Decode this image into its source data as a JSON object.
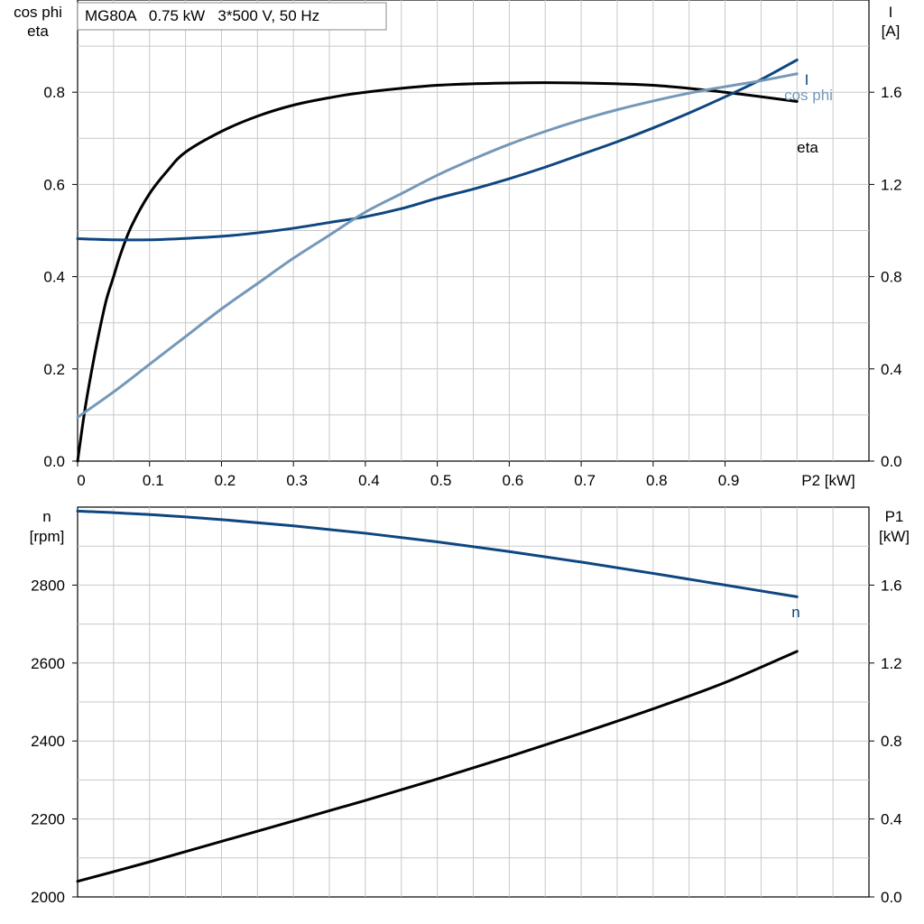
{
  "caption": "MG80A   0.75 kW   3*500 V, 50 Hz",
  "colors": {
    "eta": "#000000",
    "I": "#0e4680",
    "cos_phi": "#7498b8",
    "n": "#0e4680",
    "P1": "#000000",
    "grid": "#c8c8c8"
  },
  "chart_data": [
    {
      "type": "line",
      "x_axis": {
        "label": "P2 [kW]",
        "range": [
          0,
          1.1
        ],
        "ticks": [
          0,
          0.1,
          0.2,
          0.3,
          0.4,
          0.5,
          0.6,
          0.7,
          0.8,
          0.9
        ],
        "tick_labels": [
          "0",
          "0.1",
          "0.2",
          "0.3",
          "0.4",
          "0.5",
          "0.6",
          "0.7",
          "0.8",
          "0.9"
        ]
      },
      "left_axis": {
        "label_line1": "cos phi",
        "label_line2": "eta",
        "range": [
          0,
          1.0
        ],
        "ticks": [
          0,
          0.2,
          0.4,
          0.6,
          0.8
        ],
        "tick_labels": [
          "0.0",
          "0.2",
          "0.4",
          "0.6",
          "0.8"
        ]
      },
      "right_axis": {
        "label_line1": "I",
        "label_line2": "[A]",
        "range": [
          0,
          2.0
        ],
        "ticks": [
          0,
          0.4,
          0.8,
          1.2,
          1.6
        ],
        "tick_labels": [
          "0.0",
          "0.4",
          "0.8",
          "1.2",
          "1.6"
        ]
      },
      "grid": true,
      "series": [
        {
          "name": "eta",
          "axis": "left",
          "x": [
            0,
            0.01,
            0.02,
            0.03,
            0.04,
            0.05,
            0.06,
            0.075,
            0.1,
            0.125,
            0.15,
            0.2,
            0.25,
            0.3,
            0.35,
            0.4,
            0.5,
            0.6,
            0.7,
            0.8,
            0.9,
            1.0
          ],
          "y": [
            0.0,
            0.11,
            0.2,
            0.28,
            0.35,
            0.4,
            0.45,
            0.51,
            0.58,
            0.63,
            0.67,
            0.715,
            0.748,
            0.772,
            0.788,
            0.8,
            0.815,
            0.82,
            0.82,
            0.815,
            0.8,
            0.78
          ]
        },
        {
          "name": "I",
          "axis": "right",
          "x": [
            0,
            0.05,
            0.1,
            0.15,
            0.2,
            0.25,
            0.3,
            0.35,
            0.4,
            0.45,
            0.5,
            0.55,
            0.6,
            0.65,
            0.7,
            0.75,
            0.8,
            0.85,
            0.9,
            0.95,
            1.0
          ],
          "y": [
            0.965,
            0.96,
            0.96,
            0.966,
            0.975,
            0.99,
            1.01,
            1.035,
            1.06,
            1.095,
            1.14,
            1.18,
            1.225,
            1.275,
            1.33,
            1.385,
            1.445,
            1.51,
            1.58,
            1.655,
            1.74
          ]
        },
        {
          "name": "cos phi",
          "axis": "left",
          "x": [
            0,
            0.05,
            0.1,
            0.15,
            0.2,
            0.25,
            0.3,
            0.35,
            0.4,
            0.45,
            0.5,
            0.55,
            0.6,
            0.65,
            0.7,
            0.75,
            0.8,
            0.85,
            0.9,
            0.95,
            1.0
          ],
          "y": [
            0.095,
            0.15,
            0.21,
            0.27,
            0.33,
            0.385,
            0.44,
            0.49,
            0.54,
            0.58,
            0.62,
            0.655,
            0.687,
            0.715,
            0.74,
            0.762,
            0.781,
            0.798,
            0.812,
            0.825,
            0.84
          ]
        }
      ],
      "curve_labels": [
        "I",
        "cos phi",
        "eta"
      ]
    },
    {
      "type": "line",
      "x_axis": {
        "range": [
          0,
          1.1
        ]
      },
      "left_axis": {
        "label_line1": "n",
        "label_line2": "[rpm]",
        "range": [
          2000,
          3000
        ],
        "ticks": [
          2000,
          2200,
          2400,
          2600,
          2800
        ],
        "tick_labels": [
          "2000",
          "2200",
          "2400",
          "2600",
          "2800"
        ]
      },
      "right_axis": {
        "label_line1": "P1",
        "label_line2": "[kW]",
        "range": [
          0,
          2.0
        ],
        "ticks": [
          0,
          0.4,
          0.8,
          1.2,
          1.6
        ],
        "tick_labels": [
          "0.0",
          "0.4",
          "0.8",
          "1.2",
          "1.6"
        ]
      },
      "grid": true,
      "series": [
        {
          "name": "n",
          "axis": "left",
          "x": [
            0,
            0.1,
            0.2,
            0.3,
            0.4,
            0.5,
            0.6,
            0.7,
            0.8,
            0.9,
            1.0
          ],
          "y": [
            2990,
            2981,
            2968,
            2952,
            2933,
            2911,
            2886,
            2859,
            2830,
            2800,
            2770
          ]
        },
        {
          "name": "P1",
          "axis": "right",
          "x": [
            0,
            0.1,
            0.2,
            0.3,
            0.4,
            0.5,
            0.6,
            0.7,
            0.8,
            0.9,
            1.0
          ],
          "y": [
            0.08,
            0.18,
            0.285,
            0.39,
            0.495,
            0.605,
            0.72,
            0.84,
            0.965,
            1.1,
            1.26
          ]
        }
      ],
      "curve_labels": [
        "n"
      ]
    }
  ]
}
